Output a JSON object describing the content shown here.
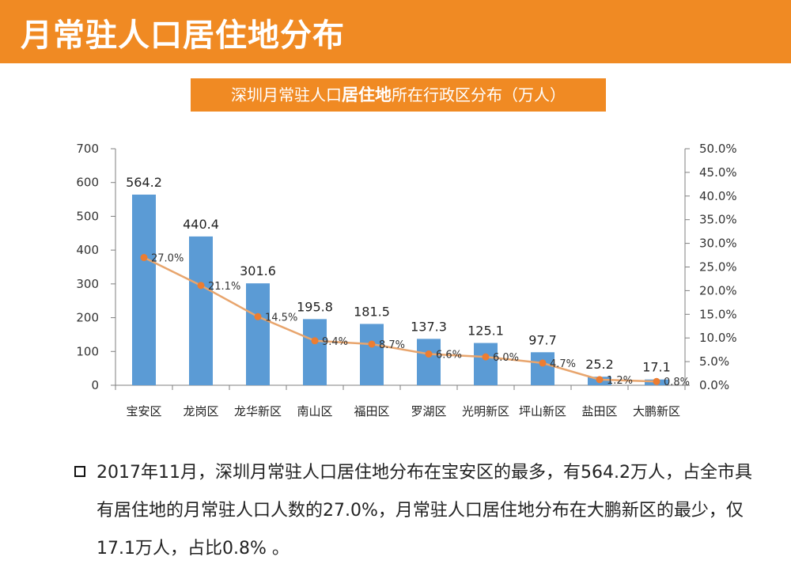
{
  "header": {
    "title": "月常驻人口居住地分布"
  },
  "subtitle": {
    "pre": "深圳月常驻人口",
    "bold": "居住地",
    "post": "所在行政区分布（万人）"
  },
  "chart_data": {
    "type": "bar",
    "categories": [
      "宝安区",
      "龙岗区",
      "龙华新区",
      "南山区",
      "福田区",
      "罗湖区",
      "光明新区",
      "坪山新区",
      "盐田区",
      "大鹏新区"
    ],
    "series": [
      {
        "type": "bar",
        "values": [
          564.2,
          440.4,
          301.6,
          195.8,
          181.5,
          137.3,
          125.1,
          97.7,
          25.2,
          17.1
        ],
        "labels": [
          "564.2",
          "440.4",
          "301.6",
          "195.8",
          "181.5",
          "137.3",
          "125.1",
          "97.7",
          "25.2",
          "17.1"
        ]
      },
      {
        "type": "line",
        "axis": "right",
        "values": [
          27.0,
          21.1,
          14.5,
          9.4,
          8.7,
          6.6,
          6.0,
          4.7,
          1.2,
          0.8
        ],
        "labels": [
          "27.0%",
          "21.1%",
          "14.5%",
          "9.4%",
          "8.7%",
          "6.6%",
          "6.0%",
          "4.7%",
          "1.2%",
          "0.8%"
        ]
      }
    ],
    "ylim": [
      0,
      700
    ],
    "y_ticks": [
      "0",
      "100",
      "200",
      "300",
      "400",
      "500",
      "600",
      "700"
    ],
    "y2lim": [
      0,
      50
    ],
    "y2_ticks": [
      "0.0%",
      "5.0%",
      "10.0%",
      "15.0%",
      "20.0%",
      "25.0%",
      "30.0%",
      "35.0%",
      "40.0%",
      "45.0%",
      "50.0%"
    ],
    "grid": false,
    "colors": {
      "bar": "#5b9bd5",
      "line": "#e8a56d",
      "marker": "#ed7d31",
      "axis": "#7f7f7f"
    }
  },
  "summary": {
    "text": "2017年11月，深圳月常驻人口居住地分布在宝安区的最多，有564.2万人，占全市具有居住地的月常驻人口人数的27.0%，月常驻人口居住地分布在大鹏新区的最少，仅17.1万人，占比0.8% 。"
  }
}
